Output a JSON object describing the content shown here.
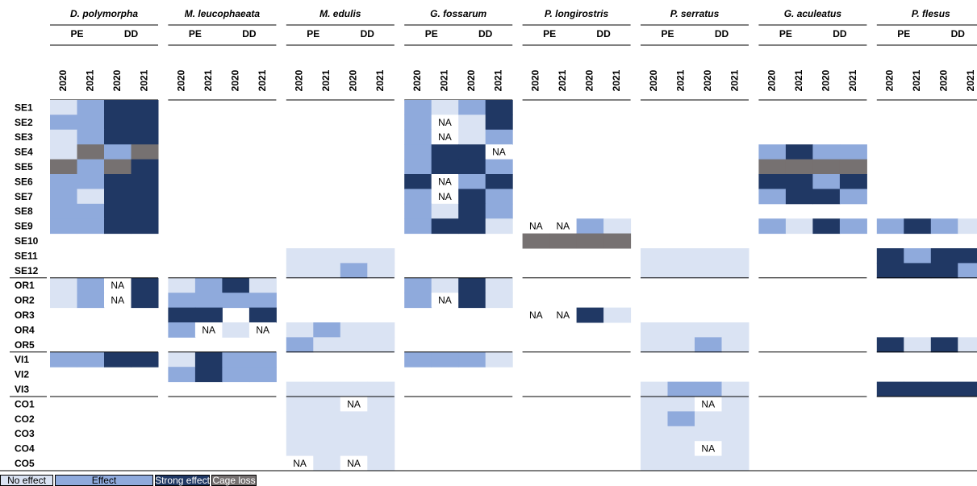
{
  "groups": [
    "PE",
    "DD"
  ],
  "years": [
    "2020",
    "2021"
  ],
  "rows": [
    "SE1",
    "SE2",
    "SE3",
    "SE4",
    "SE5",
    "SE6",
    "SE7",
    "SE8",
    "SE9",
    "SE10",
    "SE11",
    "SE12",
    "OR1",
    "OR2",
    "OR3",
    "OR4",
    "OR5",
    "VI1",
    "VI2",
    "VI3",
    "CO1",
    "CO2",
    "CO3",
    "CO4",
    "CO5"
  ],
  "legend": [
    {
      "label": "No effect",
      "color": "#dae3f3"
    },
    {
      "label": "Effect",
      "color": "#8faadc"
    },
    {
      "label": "Strong effect",
      "color": "#203864"
    },
    {
      "label": "Cage loss",
      "color": "#767171"
    }
  ],
  "species": [
    {
      "name": "D. polymorpha",
      "cells": [
        [
          0,
          1,
          2,
          2
        ],
        [
          1,
          1,
          2,
          2
        ],
        [
          0,
          1,
          2,
          2
        ],
        [
          0,
          3,
          1,
          3
        ],
        [
          3,
          1,
          3,
          2
        ],
        [
          1,
          1,
          2,
          2
        ],
        [
          1,
          0,
          2,
          2
        ],
        [
          1,
          1,
          2,
          2
        ],
        [
          1,
          1,
          2,
          2
        ],
        null,
        null,
        null,
        [
          0,
          1,
          "NA",
          2
        ],
        [
          0,
          1,
          "NA",
          2
        ],
        null,
        null,
        null,
        [
          1,
          1,
          2,
          2
        ],
        null,
        null,
        null,
        null,
        null,
        null,
        null
      ]
    },
    {
      "name": "M. leucophaeata",
      "cells": [
        null,
        null,
        null,
        null,
        null,
        null,
        null,
        null,
        null,
        null,
        null,
        null,
        [
          0,
          1,
          2,
          0
        ],
        [
          1,
          1,
          1,
          1
        ],
        [
          2,
          2,
          null,
          2
        ],
        [
          1,
          "NA",
          0,
          "NA"
        ],
        null,
        [
          0,
          2,
          1,
          1
        ],
        [
          1,
          2,
          1,
          1
        ],
        null,
        null,
        null,
        null,
        null,
        null
      ]
    },
    {
      "name": "M. edulis",
      "cells": [
        null,
        null,
        null,
        null,
        null,
        null,
        null,
        null,
        null,
        null,
        [
          0,
          0,
          0,
          0
        ],
        [
          0,
          0,
          1,
          0
        ],
        null,
        null,
        null,
        [
          0,
          1,
          0,
          0
        ],
        [
          1,
          0,
          0,
          0
        ],
        null,
        null,
        [
          0,
          0,
          0,
          0
        ],
        [
          0,
          0,
          "NA",
          0
        ],
        [
          0,
          0,
          0,
          0
        ],
        [
          0,
          0,
          0,
          0
        ],
        [
          0,
          0,
          0,
          0
        ],
        [
          "NA",
          0,
          "NA",
          0
        ]
      ]
    },
    {
      "name": "G. fossarum",
      "cells": [
        [
          1,
          0,
          1,
          2
        ],
        [
          1,
          "NA",
          0,
          2
        ],
        [
          1,
          "NA",
          0,
          1
        ],
        [
          1,
          2,
          2,
          "NA"
        ],
        [
          1,
          2,
          2,
          1
        ],
        [
          2,
          "NA",
          1,
          2
        ],
        [
          1,
          "NA",
          2,
          1
        ],
        [
          1,
          0,
          2,
          1
        ],
        [
          1,
          2,
          2,
          0
        ],
        null,
        null,
        null,
        [
          1,
          0,
          2,
          0
        ],
        [
          1,
          "NA",
          2,
          0
        ],
        null,
        null,
        null,
        [
          1,
          1,
          1,
          0
        ],
        null,
        null,
        null,
        null,
        null,
        null,
        null
      ]
    },
    {
      "name": "P. longirostris",
      "cells": [
        null,
        null,
        null,
        null,
        null,
        null,
        null,
        null,
        [
          "NA",
          "NA",
          1,
          0
        ],
        [
          3,
          3,
          3,
          3
        ],
        null,
        null,
        null,
        null,
        [
          "NA",
          "NA",
          2,
          0
        ],
        null,
        null,
        null,
        null,
        null,
        null,
        null,
        null,
        null,
        null
      ]
    },
    {
      "name": "P. serratus",
      "cells": [
        null,
        null,
        null,
        null,
        null,
        null,
        null,
        null,
        null,
        null,
        [
          0,
          0,
          0,
          0
        ],
        [
          0,
          0,
          0,
          0
        ],
        null,
        null,
        null,
        [
          0,
          0,
          0,
          0
        ],
        [
          0,
          0,
          1,
          0
        ],
        null,
        null,
        [
          0,
          1,
          1,
          0
        ],
        [
          0,
          0,
          "NA",
          0
        ],
        [
          0,
          1,
          0,
          0
        ],
        [
          0,
          0,
          0,
          0
        ],
        [
          0,
          0,
          "NA",
          0
        ],
        [
          0,
          0,
          0,
          0
        ]
      ]
    },
    {
      "name": "G. aculeatus",
      "cells": [
        null,
        null,
        null,
        [
          1,
          2,
          1,
          1
        ],
        [
          3,
          3,
          3,
          3
        ],
        [
          2,
          2,
          1,
          2
        ],
        [
          1,
          2,
          2,
          1
        ],
        null,
        [
          1,
          0,
          2,
          1
        ],
        null,
        null,
        null,
        null,
        null,
        null,
        null,
        null,
        null,
        null,
        null,
        null,
        null,
        null,
        null,
        null
      ]
    },
    {
      "name": "P. flesus",
      "cells": [
        null,
        null,
        null,
        null,
        null,
        null,
        null,
        null,
        [
          1,
          2,
          1,
          0
        ],
        null,
        [
          2,
          1,
          2,
          2
        ],
        [
          2,
          2,
          2,
          1
        ],
        null,
        null,
        null,
        null,
        [
          2,
          0,
          2,
          0
        ],
        null,
        null,
        [
          2,
          2,
          2,
          2
        ],
        null,
        null,
        null,
        null,
        null
      ]
    }
  ]
}
